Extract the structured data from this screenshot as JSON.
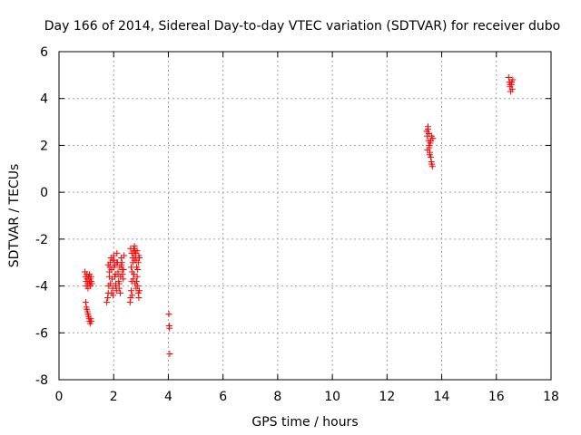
{
  "chart_data": {
    "type": "scatter",
    "title": "Day 166 of 2014, Sidereal Day-to-day VTEC variation (SDTVAR) for receiver dubo",
    "xlabel": "GPS time / hours",
    "ylabel": "SDTVAR / TECUs",
    "xlim": [
      0,
      18
    ],
    "ylim": [
      -8,
      6
    ],
    "xticks": [
      0,
      2,
      4,
      6,
      8,
      10,
      12,
      14,
      16,
      18
    ],
    "yticks": [
      -8,
      -6,
      -4,
      -2,
      0,
      2,
      4,
      6
    ],
    "grid": true,
    "marker": "plus",
    "color": "#ff0000",
    "series": [
      {
        "name": "SDTVAR",
        "x": [
          0.95,
          0.97,
          0.99,
          1.0,
          1.02,
          1.03,
          1.05,
          1.06,
          1.08,
          1.1,
          1.11,
          1.12,
          1.14,
          1.15,
          1.17,
          1.18,
          1.2,
          0.98,
          1.0,
          1.02,
          1.04,
          1.06,
          1.08,
          1.1,
          1.12,
          1.14,
          1.16,
          1.18,
          1.75,
          1.78,
          1.8,
          1.82,
          1.84,
          1.86,
          1.88,
          1.9,
          1.92,
          1.94,
          1.96,
          1.98,
          2.0,
          2.02,
          2.04,
          2.06,
          2.08,
          2.1,
          2.12,
          2.14,
          2.16,
          2.18,
          2.2,
          2.22,
          2.25,
          2.28,
          2.3,
          2.32,
          2.35,
          2.38,
          1.8,
          1.84,
          1.88,
          1.92,
          1.96,
          2.0,
          2.04,
          2.08,
          2.12,
          2.16,
          2.2,
          2.24,
          2.28,
          2.32,
          2.36,
          2.6,
          2.62,
          2.64,
          2.66,
          2.68,
          2.7,
          2.72,
          2.74,
          2.76,
          2.78,
          2.8,
          2.82,
          2.84,
          2.86,
          2.88,
          2.9,
          2.92,
          2.94,
          2.62,
          2.66,
          2.7,
          2.74,
          2.78,
          2.82,
          2.86,
          2.9,
          2.94,
          2.64,
          2.72,
          2.8,
          2.88,
          2.68,
          2.76,
          2.84,
          2.92,
          4.02,
          4.03,
          4.04,
          4.05,
          13.45,
          13.47,
          13.5,
          13.52,
          13.54,
          13.55,
          13.57,
          13.6,
          13.62,
          13.64,
          13.66,
          13.68,
          13.48,
          13.53,
          13.58,
          13.63,
          13.5,
          13.56,
          13.6,
          16.45,
          16.48,
          16.5,
          16.52,
          16.55,
          16.58,
          16.6,
          16.5,
          16.56
        ],
        "y": [
          -3.4,
          -3.6,
          -3.8,
          -4.0,
          -3.5,
          -3.7,
          -3.9,
          -4.1,
          -3.6,
          -3.8,
          -3.5,
          -3.9,
          -3.7,
          -4.0,
          -3.6,
          -3.8,
          -3.9,
          -4.7,
          -4.9,
          -5.0,
          -5.1,
          -5.2,
          -5.3,
          -5.4,
          -5.5,
          -5.6,
          -5.4,
          -5.5,
          -4.7,
          -4.5,
          -4.3,
          -4.0,
          -3.6,
          -3.2,
          -3.0,
          -2.8,
          -3.3,
          -3.7,
          -4.1,
          -4.4,
          -2.7,
          -2.9,
          -3.1,
          -3.5,
          -3.9,
          -4.2,
          -2.6,
          -3.0,
          -3.4,
          -3.8,
          -4.1,
          -3.2,
          -3.6,
          -2.8,
          -3.0,
          -3.3,
          -3.7,
          -2.7,
          -3.1,
          -3.4,
          -3.9,
          -4.3,
          -2.9,
          -3.2,
          -3.6,
          -4.0,
          -3.0,
          -3.5,
          -3.9,
          -4.3,
          -3.1,
          -3.5,
          -3.3,
          -4.7,
          -4.5,
          -4.2,
          -3.8,
          -3.4,
          -3.0,
          -2.6,
          -2.4,
          -2.3,
          -2.5,
          -2.7,
          -2.9,
          -3.2,
          -3.6,
          -4.0,
          -4.3,
          -4.5,
          -2.8,
          -2.4,
          -2.6,
          -2.8,
          -3.5,
          -3.9,
          -4.1,
          -2.5,
          -3.0,
          -4.2,
          -3.2,
          -3.7,
          -2.6,
          -3.3,
          -4.4,
          -2.9,
          -3.8,
          -2.7,
          -5.2,
          -5.7,
          -5.8,
          -6.9,
          2.6,
          2.4,
          2.8,
          2.2,
          2.0,
          1.9,
          1.7,
          1.5,
          1.3,
          1.2,
          1.1,
          2.3,
          1.8,
          2.5,
          2.1,
          2.4,
          2.7,
          1.6,
          2.2,
          4.9,
          4.7,
          4.5,
          4.3,
          4.6,
          4.4,
          4.8,
          4.6,
          4.7
        ]
      }
    ]
  }
}
